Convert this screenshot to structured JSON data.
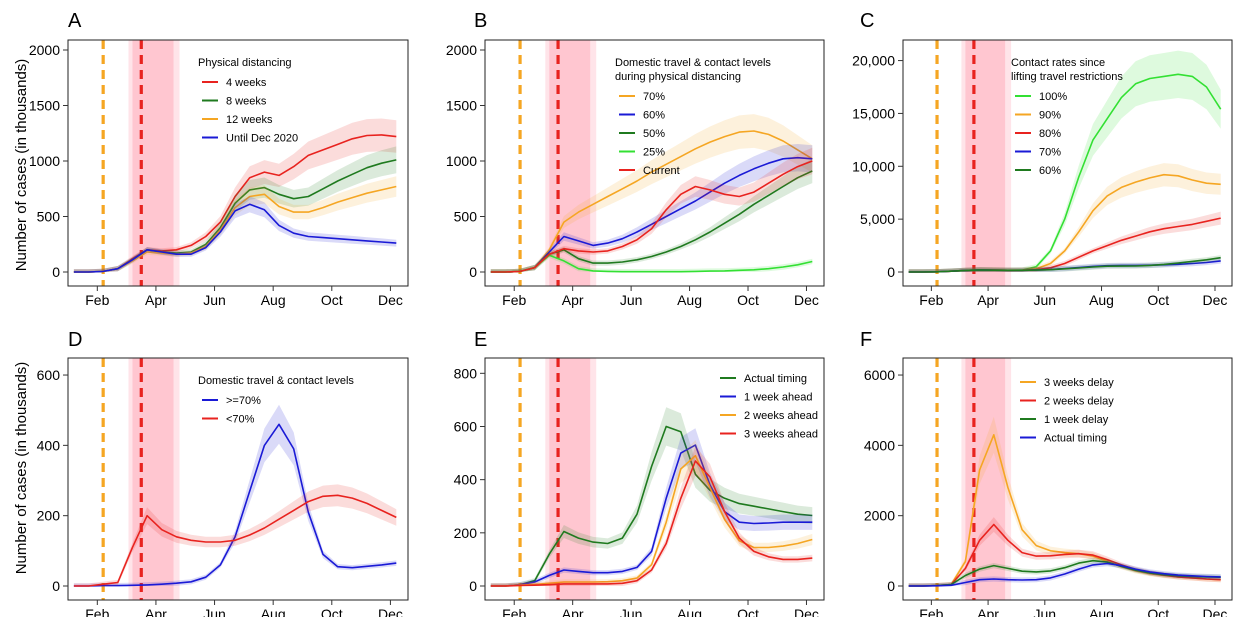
{
  "ylabel": "Number of cases (in thousands)",
  "xticks": [
    "Feb",
    "Apr",
    "Jun",
    "Aug",
    "Oct",
    "Dec"
  ],
  "colors": {
    "red": "#e8231f",
    "green": "#1f7a1f",
    "orange": "#f5a623",
    "blue": "#1a1ad6",
    "lime": "#33e033",
    "vline_orange": "#f5a623",
    "vline_red": "#e8231f",
    "band": "#ffb3c0"
  },
  "chart_data": [
    {
      "panel": "A",
      "type": "line",
      "ylim": [
        0,
        2000
      ],
      "yticks": [
        "0",
        "500",
        "1000",
        "1500",
        "2000"
      ],
      "legend_title": [
        "Physical distancing"
      ],
      "legend_position": "top-left",
      "x": [
        0,
        0.5,
        1,
        1.5,
        2,
        2.5,
        3,
        3.5,
        4,
        4.5,
        5,
        5.5,
        6,
        6.5,
        7,
        7.5,
        8,
        8.5,
        9,
        9.5,
        10,
        10.5,
        11
      ],
      "series": [
        {
          "name": "4 weeks",
          "color": "red",
          "values": [
            0,
            0,
            5,
            30,
            120,
            200,
            190,
            200,
            240,
            320,
            450,
            680,
            850,
            900,
            870,
            950,
            1050,
            1100,
            1150,
            1200,
            1230,
            1235,
            1220
          ]
        },
        {
          "name": "8 weeks",
          "color": "green",
          "values": [
            0,
            0,
            5,
            30,
            110,
            200,
            180,
            170,
            180,
            250,
            400,
            620,
            740,
            760,
            700,
            660,
            680,
            750,
            820,
            880,
            940,
            980,
            1010
          ]
        },
        {
          "name": "12 weeks",
          "color": "orange",
          "values": [
            0,
            0,
            5,
            30,
            100,
            180,
            170,
            160,
            170,
            230,
            380,
            580,
            680,
            700,
            590,
            540,
            540,
            580,
            630,
            670,
            710,
            740,
            770
          ]
        },
        {
          "name": "Until Dec 2020",
          "color": "blue",
          "values": [
            0,
            0,
            5,
            30,
            110,
            200,
            180,
            160,
            160,
            220,
            360,
            550,
            610,
            560,
            420,
            350,
            320,
            310,
            300,
            290,
            280,
            270,
            260
          ]
        }
      ]
    },
    {
      "panel": "B",
      "type": "line",
      "ylim": [
        0,
        2000
      ],
      "yticks": [
        "0",
        "500",
        "1000",
        "1500",
        "2000"
      ],
      "legend_title": [
        "Domestic travel & contact levels",
        "during physical distancing"
      ],
      "legend_position": "top-left",
      "x": [
        0,
        0.5,
        1,
        1.5,
        2,
        2.5,
        3,
        3.5,
        4,
        4.5,
        5,
        5.5,
        6,
        6.5,
        7,
        7.5,
        8,
        8.5,
        9,
        9.5,
        10,
        10.5,
        11
      ],
      "series": [
        {
          "name": "70%",
          "color": "orange",
          "values": [
            0,
            0,
            5,
            40,
            200,
            450,
            540,
            610,
            680,
            750,
            820,
            900,
            970,
            1040,
            1110,
            1170,
            1220,
            1260,
            1270,
            1240,
            1180,
            1100,
            1020
          ]
        },
        {
          "name": "60%",
          "color": "blue",
          "values": [
            0,
            0,
            5,
            40,
            180,
            320,
            280,
            240,
            260,
            300,
            360,
            430,
            500,
            570,
            640,
            720,
            800,
            870,
            930,
            980,
            1020,
            1030,
            1020
          ]
        },
        {
          "name": "50%",
          "color": "green",
          "values": [
            0,
            0,
            5,
            40,
            160,
            200,
            120,
            80,
            80,
            90,
            110,
            140,
            180,
            230,
            290,
            360,
            440,
            520,
            610,
            690,
            770,
            850,
            910
          ]
        },
        {
          "name": "25%",
          "color": "lime",
          "values": [
            0,
            0,
            5,
            40,
            150,
            100,
            30,
            10,
            5,
            3,
            3,
            3,
            3,
            3,
            5,
            8,
            10,
            15,
            20,
            30,
            45,
            65,
            95
          ]
        },
        {
          "name": "Current",
          "color": "red",
          "values": [
            0,
            0,
            5,
            40,
            160,
            210,
            190,
            180,
            190,
            230,
            290,
            390,
            560,
            700,
            770,
            740,
            700,
            680,
            720,
            800,
            880,
            950,
            1000
          ]
        }
      ]
    },
    {
      "panel": "C",
      "type": "line",
      "ylim": [
        0,
        21000
      ],
      "yticks": [
        "0",
        "5,000",
        "10,000",
        "15,000",
        "20,000"
      ],
      "legend_title": [
        "Contact rates since",
        "lifting travel restrictions"
      ],
      "legend_position": "top-left",
      "x": [
        0,
        0.5,
        1,
        1.5,
        2,
        2.5,
        3,
        3.5,
        4,
        4.5,
        5,
        5.5,
        6,
        6.5,
        7,
        7.5,
        8,
        8.5,
        9,
        9.5,
        10,
        10.5,
        11
      ],
      "series": [
        {
          "name": "100%",
          "color": "lime",
          "values": [
            0,
            0,
            20,
            80,
            150,
            200,
            180,
            160,
            180,
            500,
            2000,
            5000,
            9000,
            12500,
            14500,
            16500,
            17800,
            18300,
            18500,
            18700,
            18500,
            17500,
            15400
          ]
        },
        {
          "name": "90%",
          "color": "orange",
          "values": [
            0,
            0,
            20,
            80,
            150,
            200,
            180,
            160,
            170,
            300,
            800,
            2000,
            3800,
            5800,
            7200,
            8000,
            8500,
            8900,
            9200,
            9100,
            8700,
            8400,
            8300
          ]
        },
        {
          "name": "80%",
          "color": "red",
          "values": [
            0,
            0,
            20,
            80,
            150,
            200,
            180,
            160,
            160,
            220,
            400,
            800,
            1400,
            2000,
            2500,
            3000,
            3400,
            3800,
            4100,
            4300,
            4500,
            4800,
            5100
          ]
        },
        {
          "name": "70%",
          "color": "blue",
          "values": [
            0,
            0,
            20,
            80,
            150,
            200,
            170,
            160,
            160,
            180,
            230,
            330,
            430,
            530,
            600,
            620,
            620,
            640,
            680,
            730,
            800,
            900,
            1050
          ]
        },
        {
          "name": "60%",
          "color": "green",
          "values": [
            0,
            0,
            20,
            80,
            150,
            200,
            170,
            160,
            160,
            180,
            220,
            300,
            380,
            470,
            550,
            560,
            570,
            620,
            720,
            850,
            1000,
            1150,
            1350
          ]
        }
      ]
    },
    {
      "panel": "D",
      "type": "line",
      "ylim": [
        0,
        620
      ],
      "yticks": [
        "0",
        "200",
        "400",
        "600"
      ],
      "legend_title": [
        "Domestic travel & contact levels"
      ],
      "legend_position": "top-left",
      "x": [
        0,
        0.5,
        1,
        1.5,
        2,
        2.5,
        3,
        3.5,
        4,
        4.5,
        5,
        5.5,
        6,
        6.5,
        7,
        7.5,
        8,
        8.5,
        9,
        9.5,
        10,
        10.5,
        11
      ],
      "series": [
        {
          "name": ">=70%",
          "color": "blue",
          "values": [
            0,
            0,
            1,
            1,
            2,
            3,
            5,
            8,
            12,
            25,
            60,
            140,
            270,
            400,
            460,
            390,
            210,
            90,
            55,
            52,
            56,
            60,
            65
          ]
        },
        {
          "name": "<70%",
          "color": "red",
          "values": [
            0,
            0,
            5,
            10,
            110,
            200,
            160,
            140,
            130,
            125,
            125,
            130,
            145,
            165,
            190,
            215,
            240,
            255,
            258,
            250,
            235,
            215,
            195
          ]
        }
      ]
    },
    {
      "panel": "E",
      "type": "line",
      "ylim": [
        0,
        820
      ],
      "yticks": [
        "0",
        "200",
        "400",
        "600",
        "800"
      ],
      "legend_position": "top-right",
      "x": [
        0,
        0.5,
        1,
        1.5,
        2,
        2.5,
        3,
        3.5,
        4,
        4.5,
        5,
        5.5,
        6,
        6.5,
        7,
        7.5,
        8,
        8.5,
        9,
        9.5,
        10,
        10.5,
        11
      ],
      "series": [
        {
          "name": "Actual timing",
          "color": "green",
          "values": [
            0,
            0,
            5,
            20,
            120,
            205,
            180,
            165,
            160,
            180,
            270,
            450,
            600,
            580,
            420,
            360,
            330,
            310,
            300,
            290,
            280,
            270,
            265
          ]
        },
        {
          "name": "1 week ahead",
          "color": "blue",
          "values": [
            0,
            0,
            5,
            15,
            40,
            60,
            55,
            50,
            50,
            55,
            70,
            130,
            330,
            500,
            530,
            380,
            280,
            240,
            235,
            237,
            240,
            240,
            240
          ]
        },
        {
          "name": "2 weeks ahead",
          "color": "orange",
          "values": [
            0,
            0,
            3,
            6,
            10,
            15,
            15,
            15,
            16,
            20,
            30,
            80,
            240,
            440,
            490,
            370,
            250,
            170,
            145,
            145,
            150,
            160,
            175
          ]
        },
        {
          "name": "3 weeks ahead",
          "color": "red",
          "values": [
            0,
            0,
            2,
            3,
            5,
            8,
            8,
            8,
            8,
            10,
            20,
            60,
            160,
            330,
            470,
            410,
            280,
            180,
            130,
            110,
            100,
            100,
            105
          ]
        }
      ]
    },
    {
      "panel": "F",
      "type": "line",
      "ylim": [
        0,
        6200
      ],
      "yticks": [
        "0",
        "2000",
        "4000",
        "6000"
      ],
      "legend_position": "top-right",
      "x": [
        0,
        0.5,
        1,
        1.5,
        2,
        2.5,
        3,
        3.5,
        4,
        4.5,
        5,
        5.5,
        6,
        6.5,
        7,
        7.5,
        8,
        8.5,
        9,
        9.5,
        10,
        10.5,
        11
      ],
      "series": [
        {
          "name": "3 weeks delay",
          "color": "orange",
          "values": [
            0,
            0,
            10,
            40,
            700,
            3300,
            4300,
            2800,
            1600,
            1150,
            1000,
            950,
            920,
            850,
            700,
            550,
            430,
            350,
            300,
            260,
            230,
            200,
            180
          ]
        },
        {
          "name": "2 weeks delay",
          "color": "red",
          "values": [
            0,
            0,
            10,
            40,
            500,
            1300,
            1750,
            1300,
            950,
            850,
            860,
            900,
            920,
            880,
            750,
            600,
            470,
            370,
            310,
            260,
            230,
            200,
            180
          ]
        },
        {
          "name": "1 week delay",
          "color": "green",
          "values": [
            0,
            0,
            10,
            40,
            300,
            480,
            580,
            500,
            420,
            400,
            430,
            520,
            650,
            720,
            680,
            560,
            450,
            370,
            320,
            290,
            270,
            260,
            250
          ]
        },
        {
          "name": "Actual timing",
          "color": "blue",
          "values": [
            0,
            0,
            5,
            20,
            100,
            180,
            200,
            180,
            170,
            180,
            230,
            340,
            480,
            600,
            640,
            580,
            480,
            400,
            350,
            310,
            290,
            270,
            260
          ]
        }
      ]
    }
  ]
}
